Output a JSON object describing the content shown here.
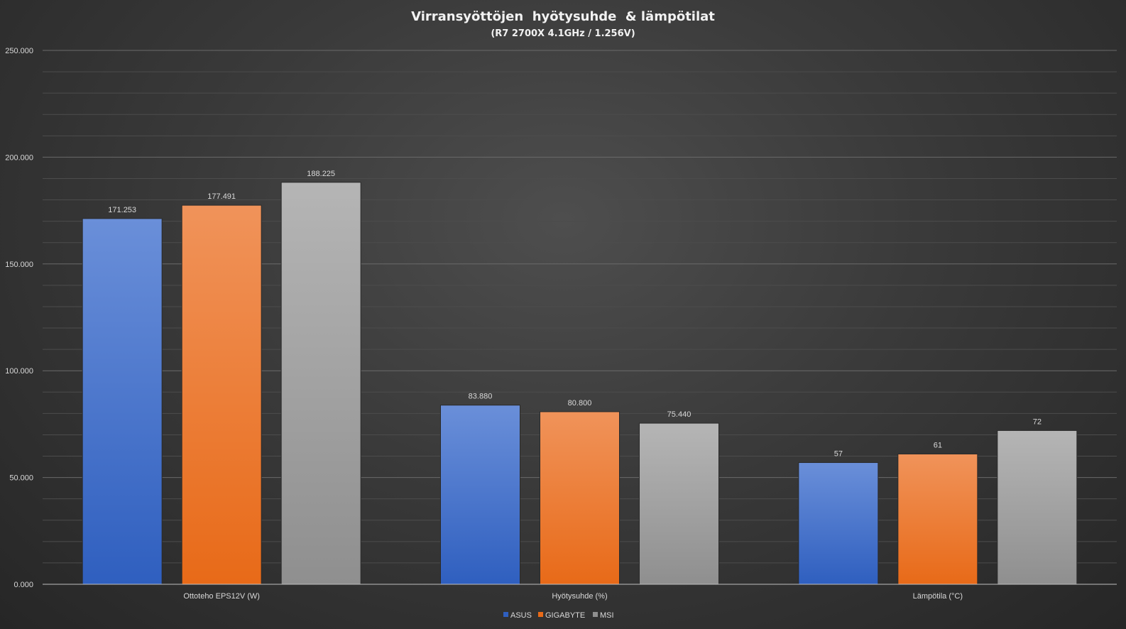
{
  "chart_data": {
    "type": "bar",
    "title": "Virransyöttöjen  hyötysuhde  & lämpötilat",
    "subtitle": "(R7 2700X 4.1GHz / 1.256V)",
    "categories": [
      "Ottoteho EPS12V (W)",
      "Hyötysuhde (%)",
      "Lämpötila (°C)"
    ],
    "series": [
      {
        "name": "ASUS",
        "values": [
          171.253,
          83.88,
          57
        ],
        "labels": [
          "171.253",
          "83.880",
          "57"
        ],
        "color_top": "#6a8fd9",
        "color_bottom": "#2f5fbf"
      },
      {
        "name": "GIGABYTE",
        "values": [
          177.491,
          80.8,
          61
        ],
        "labels": [
          "177.491",
          "80.800",
          "61"
        ],
        "color_top": "#f0935a",
        "color_bottom": "#e86a18"
      },
      {
        "name": "MSI",
        "values": [
          188.225,
          75.44,
          72
        ],
        "labels": [
          "188.225",
          "75.440",
          "72"
        ],
        "color_top": "#b5b5b5",
        "color_bottom": "#8f8f8f"
      }
    ],
    "ylim": [
      0,
      250
    ],
    "yticks": [
      0,
      50,
      100,
      150,
      200,
      250
    ],
    "ytick_labels": [
      "0.000",
      "50.000",
      "100.000",
      "150.000",
      "200.000",
      "250.000"
    ],
    "grid": true,
    "legend": "bottom"
  }
}
